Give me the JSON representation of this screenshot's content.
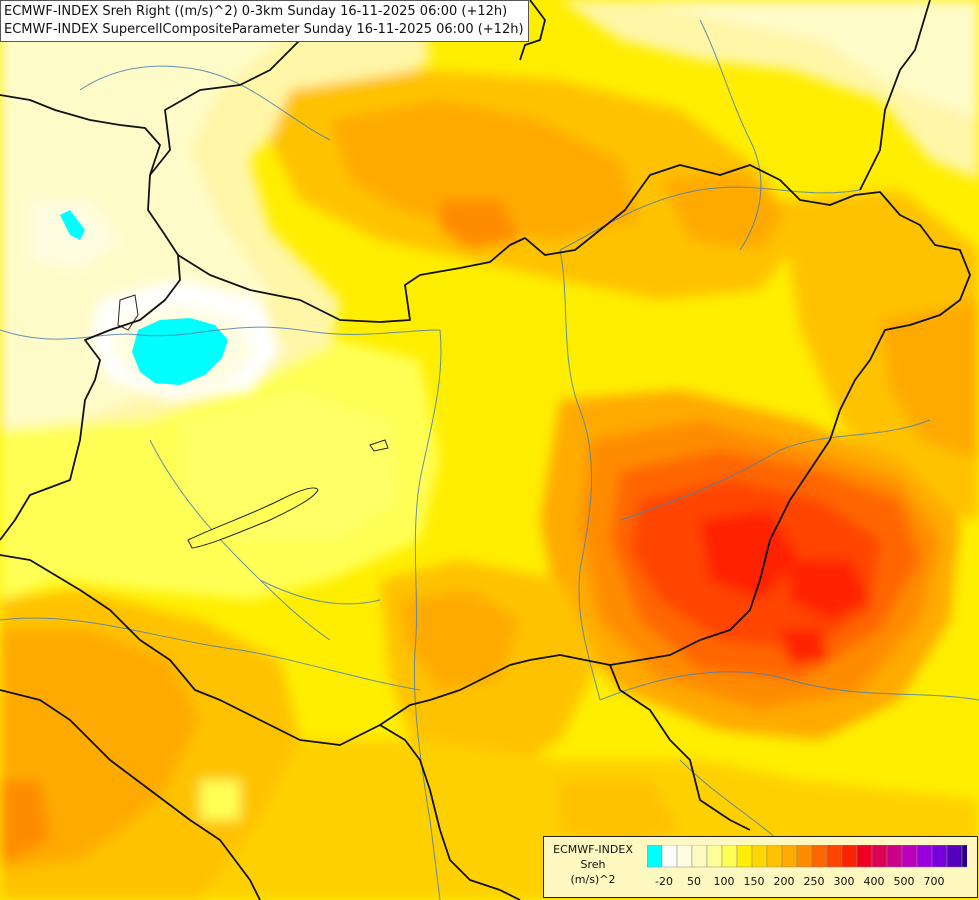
{
  "title": {
    "line1": "ECMWF-INDEX Sreh Right ((m/s)^2) 0-3km Sunday 16-11-2025 06:00 (+12h)",
    "line2": "ECMWF-INDEX SupercellCompositeParameter Sunday 16-11-2025 06:00 (+12h)"
  },
  "legend": {
    "model": "ECMWF-INDEX",
    "parameter": "Sreh",
    "unit": "(m/s)^2",
    "colors": [
      "#00ffff",
      "#ffffff",
      "#fffde0",
      "#fffbc0",
      "#ffff99",
      "#ffff55",
      "#ffee00",
      "#ffd700",
      "#ffc200",
      "#ffaa00",
      "#ff8c00",
      "#ff6600",
      "#ff4400",
      "#ff2200",
      "#ee0022",
      "#dd0055",
      "#cc0088",
      "#bb00bb",
      "#9900dd",
      "#7700dd",
      "#5500bb",
      "#220088"
    ],
    "ticks": [
      "-20",
      "50",
      "100",
      "150",
      "200",
      "250",
      "300",
      "400",
      "500",
      "700"
    ]
  },
  "icons": [
    "map-icon"
  ]
}
